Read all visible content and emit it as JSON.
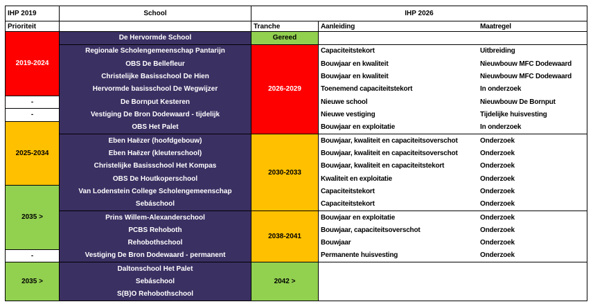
{
  "header": {
    "ihp2019": "IHP 2019",
    "prioriteit": "Prioriteit",
    "school": "School",
    "ihp2026": "IHP 2026",
    "tranche": "Tranche",
    "aanleiding": "Aanleiding",
    "maatregel": "Maatregel"
  },
  "colors": {
    "red": "#FF0000",
    "orange": "#FFC000",
    "green": "#92D050",
    "school_bg": "#3B3062",
    "school_fg": "#FFFFFF",
    "grid_line": "#000000"
  },
  "priority_groups": [
    {
      "label": "2019-2024",
      "bg": "#FF0000",
      "fg": "#FFFFFF",
      "start": 1,
      "count": 5
    },
    {
      "label": "-",
      "bg": "#FFFFFF",
      "fg": "#000000",
      "start": 6,
      "count": 1
    },
    {
      "label": "-",
      "bg": "#FFFFFF",
      "fg": "#000000",
      "start": 7,
      "count": 1
    },
    {
      "label": "2025-2034",
      "bg": "#FFC000",
      "fg": "#000000",
      "start": 8,
      "count": 5
    },
    {
      "label": "2035 >",
      "bg": "#92D050",
      "fg": "#000000",
      "start": 13,
      "count": 5
    },
    {
      "label": "-",
      "bg": "#FFFFFF",
      "fg": "#000000",
      "start": 18,
      "count": 1
    },
    {
      "label": "2035 >",
      "bg": "#92D050",
      "fg": "#000000",
      "start": 19,
      "count": 3
    }
  ],
  "tranche_groups": [
    {
      "label": "Gereed",
      "bg": "#92D050",
      "fg": "#000000",
      "start": 1,
      "count": 1
    },
    {
      "label": "2026-2029",
      "bg": "#FF0000",
      "fg": "#FFFFFF",
      "start": 2,
      "count": 7
    },
    {
      "label": "2030-2033",
      "bg": "#FFC000",
      "fg": "#000000",
      "start": 9,
      "count": 6
    },
    {
      "label": "2038-2041",
      "bg": "#FFC000",
      "fg": "#000000",
      "start": 15,
      "count": 4
    },
    {
      "label": "2042 >",
      "bg": "#92D050",
      "fg": "#000000",
      "start": 19,
      "count": 3
    }
  ],
  "rows": [
    {
      "school": "De Hervormde School",
      "aanleiding": "",
      "maatregel": ""
    },
    {
      "school": "Regionale Scholengemeenschap Pantarijn",
      "aanleiding": "Capaciteitstekort",
      "maatregel": "Uitbreiding"
    },
    {
      "school": "OBS De Bellefleur",
      "aanleiding": "Bouwjaar en kwaliteit",
      "maatregel": "Nieuwbouw MFC Dodewaard"
    },
    {
      "school": "Christelijke Basisschool De Hien",
      "aanleiding": "Bouwjaar en kwaliteit",
      "maatregel": "Nieuwbouw MFC Dodewaard"
    },
    {
      "school": "Hervormde basisschool De Wegwijzer",
      "aanleiding": "Toenemend capaciteitstekort",
      "maatregel": "In onderzoek"
    },
    {
      "school": "De Bornput Kesteren",
      "aanleiding": "Nieuwe school",
      "maatregel": "Nieuwbouw De Bornput"
    },
    {
      "school": "Vestiging De Bron Dodewaard - tijdelijk",
      "aanleiding": "Nieuwe vestiging",
      "maatregel": "Tijdelijke huisvesting"
    },
    {
      "school": "OBS Het Palet",
      "aanleiding": "Bouwjaar en exploitatie",
      "maatregel": "In onderzoek"
    },
    {
      "school": "Eben Haëzer (hoofdgebouw)",
      "aanleiding": "Bouwjaar, kwaliteit en capaciteitsoverschot",
      "maatregel": "Onderzoek"
    },
    {
      "school": "Eben Haëzer (kleuterschool)",
      "aanleiding": "Bouwjaar, kwaliteit en capaciteitsoverschot",
      "maatregel": "Onderzoek"
    },
    {
      "school": "Christelijke Basisschool Het Kompas",
      "aanleiding": "Bouwjaar, kwaliteit en capaciteitstekort",
      "maatregel": "Onderzoek"
    },
    {
      "school": "OBS De Houtkoperschool",
      "aanleiding": "Kwaliteit en exploitatie",
      "maatregel": "Onderzoek"
    },
    {
      "school": "Van Lodenstein College Scholengemeenschap",
      "aanleiding": "Capaciteitstekort",
      "maatregel": "Onderzoek"
    },
    {
      "school": "Sebáschool",
      "aanleiding": "Capaciteitstekort",
      "maatregel": "Onderzoek"
    },
    {
      "school": "Prins Willem-Alexanderschool",
      "aanleiding": "Bouwjaar en exploitatie",
      "maatregel": "Onderzoek"
    },
    {
      "school": "PCBS Rehoboth",
      "aanleiding": "Bouwjaar, capaciteitsoverschot",
      "maatregel": "Onderzoek"
    },
    {
      "school": "Rehobothschool",
      "aanleiding": "Bouwjaar",
      "maatregel": "Onderzoek"
    },
    {
      "school": "Vestiging De Bron Dodewaard - permanent",
      "aanleiding": "Permanente huisvesting",
      "maatregel": "Onderzoek"
    },
    {
      "school": "Daltonschool Het Palet",
      "aanleiding": "",
      "maatregel": ""
    },
    {
      "school": "Sebáschool",
      "aanleiding": "",
      "maatregel": ""
    },
    {
      "school": "S(B)O Rehobothschool",
      "aanleiding": "",
      "maatregel": ""
    }
  ]
}
